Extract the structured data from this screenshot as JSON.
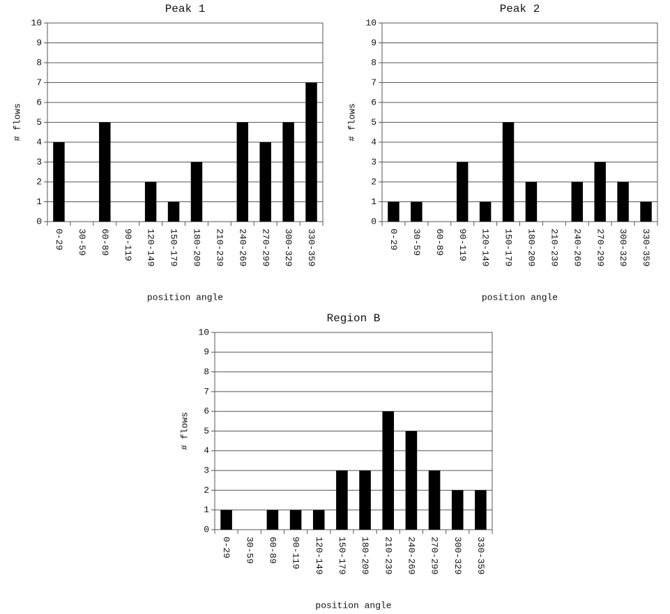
{
  "chart_data": [
    {
      "type": "bar",
      "title": "Peak 1",
      "x_label": "position angle",
      "y_label": "# flows",
      "categories": [
        "0-29",
        "30-59",
        "60-89",
        "90-119",
        "120-149",
        "150-179",
        "180-209",
        "210-239",
        "240-269",
        "270-299",
        "300-329",
        "330-359"
      ],
      "values": [
        4,
        0,
        5,
        0,
        2,
        1,
        3,
        0,
        5,
        4,
        5,
        7
      ],
      "color": "#000000",
      "ylim": [
        0,
        10
      ],
      "yticks": [
        0,
        1,
        2,
        3,
        4,
        5,
        6,
        7,
        8,
        9,
        10
      ],
      "grid": true
    },
    {
      "type": "bar",
      "title": "Peak 2",
      "x_label": "position angle",
      "y_label": "# flows",
      "categories": [
        "0-29",
        "30-59",
        "60-89",
        "90-119",
        "120-149",
        "150-179",
        "180-209",
        "210-239",
        "240-269",
        "270-299",
        "300-329",
        "330-359"
      ],
      "values": [
        1,
        1,
        0,
        3,
        1,
        5,
        2,
        0,
        2,
        3,
        2,
        1
      ],
      "color": "#000000",
      "ylim": [
        0,
        10
      ],
      "yticks": [
        0,
        1,
        2,
        3,
        4,
        5,
        6,
        7,
        8,
        9,
        10
      ],
      "grid": true
    },
    {
      "type": "bar",
      "title": "Region B",
      "x_label": "position angle",
      "y_label": "# flows",
      "categories": [
        "0-29",
        "30-59",
        "60-89",
        "90-119",
        "120-149",
        "150-179",
        "180-209",
        "210-239",
        "240-269",
        "270-299",
        "300-329",
        "330-359"
      ],
      "values": [
        1,
        0,
        1,
        1,
        1,
        3,
        3,
        6,
        5,
        3,
        2,
        2
      ],
      "color": "#000000",
      "ylim": [
        0,
        10
      ],
      "yticks": [
        0,
        1,
        2,
        3,
        4,
        5,
        6,
        7,
        8,
        9,
        10
      ],
      "grid": true
    }
  ]
}
